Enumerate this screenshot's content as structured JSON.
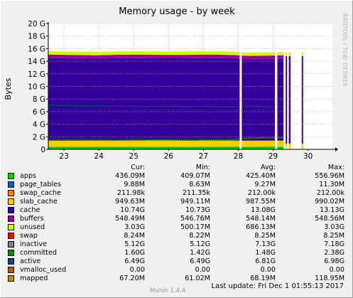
{
  "chart_data": {
    "type": "area",
    "title": "Memory usage - by week",
    "ylabel": "Bytes",
    "xlabel": "",
    "watermark": "RRDTOOL / TOBI OETIKER",
    "ylim": [
      0,
      20
    ],
    "y_unit": "G",
    "y_ticks": [
      "0",
      "2 G",
      "4 G",
      "6 G",
      "8 G",
      "10 G",
      "12 G",
      "14 G",
      "16 G",
      "18 G",
      "20 G"
    ],
    "x_ticks": [
      "23",
      "24",
      "25",
      "26",
      "27",
      "28",
      "29",
      "30"
    ],
    "x_range": [
      22.55,
      30.7
    ],
    "grid": true,
    "stack_order": [
      "apps",
      "page_tables",
      "swap_cache",
      "slab_cache",
      "cache",
      "buffers",
      "unused"
    ],
    "line_series": [
      "swap",
      "inactive",
      "committed",
      "active",
      "vmalloc_used",
      "mapped"
    ],
    "profile": {
      "x": [
        22.55,
        23.9,
        24.4,
        25.0,
        25.8,
        26.5,
        27.2,
        27.8,
        28.3,
        28.8,
        29.3
      ],
      "apps": [
        0.4,
        0.41,
        0.42,
        0.42,
        0.43,
        0.42,
        0.43,
        0.44,
        0.43,
        0.44,
        0.44
      ],
      "slab_cache": [
        1.0,
        0.99,
        0.99,
        0.98,
        0.98,
        0.97,
        0.97,
        0.96,
        0.96,
        0.95,
        0.95
      ],
      "cache": [
        13.1,
        13.0,
        13.05,
        13.1,
        13.05,
        13.08,
        13.1,
        13.05,
        12.9,
        12.95,
        13.0
      ],
      "buffers": [
        0.55,
        0.55,
        0.55,
        0.55,
        0.55,
        0.55,
        0.55,
        0.55,
        0.55,
        0.55,
        0.55
      ],
      "unused": [
        0.55,
        0.56,
        0.55,
        0.54,
        0.55,
        0.55,
        0.56,
        0.55,
        0.55,
        0.54,
        0.52
      ],
      "active": [
        6.98,
        6.92,
        6.87,
        6.83,
        6.8,
        6.81,
        6.8,
        6.78,
        6.8,
        6.82,
        6.83
      ],
      "committed": [
        1.45,
        1.47,
        1.45,
        1.48,
        1.5,
        1.47,
        1.5,
        1.52,
        1.8,
        1.85,
        1.82
      ]
    },
    "gaps": [
      [
        28.04,
        28.1
      ],
      [
        29.05,
        29.12
      ],
      [
        29.3,
        29.55
      ],
      [
        29.62,
        29.75
      ],
      [
        29.9,
        30.12
      ]
    ],
    "spikes": [
      [
        29.36,
        29.4
      ],
      [
        29.45,
        29.5
      ],
      [
        29.82,
        29.86
      ]
    ],
    "column_headers": [
      "Cur:",
      "Min:",
      "Avg:",
      "Max:"
    ],
    "series": [
      {
        "name": "apps",
        "color": "#00cc00",
        "cur": "436.09M",
        "min": "409.07M",
        "avg": "425.40M",
        "max": "556.96M"
      },
      {
        "name": "page_tables",
        "color": "#0066b3",
        "cur": "9.88M",
        "min": "8.63M",
        "avg": "9.27M",
        "max": "11.30M"
      },
      {
        "name": "swap_cache",
        "color": "#ff8000",
        "cur": "211.98k",
        "min": "211.35k",
        "avg": "212.00k",
        "max": "212.00k"
      },
      {
        "name": "slab_cache",
        "color": "#ffcc00",
        "cur": "949.63M",
        "min": "949.11M",
        "avg": "987.55M",
        "max": "990.02M"
      },
      {
        "name": "cache",
        "color": "#330099",
        "cur": "10.74G",
        "min": "10.73G",
        "avg": "13.08G",
        "max": "13.13G"
      },
      {
        "name": "buffers",
        "color": "#990099",
        "cur": "548.49M",
        "min": "546.76M",
        "avg": "548.14M",
        "max": "548.56M"
      },
      {
        "name": "unused",
        "color": "#ccff00",
        "cur": "3.03G",
        "min": "500.17M",
        "avg": "686.13M",
        "max": "3.03G"
      },
      {
        "name": "swap",
        "color": "#ff0000",
        "cur": "8.24M",
        "min": "8.22M",
        "avg": "8.25M",
        "max": "8.25M"
      },
      {
        "name": "inactive",
        "color": "#808080",
        "cur": "5.12G",
        "min": "5.12G",
        "avg": "7.13G",
        "max": "7.18G"
      },
      {
        "name": "committed",
        "color": "#008f00",
        "cur": "1.60G",
        "min": "1.42G",
        "avg": "1.48G",
        "max": "2.38G"
      },
      {
        "name": "active",
        "color": "#00487d",
        "cur": "6.49G",
        "min": "6.49G",
        "avg": "6.81G",
        "max": "6.98G"
      },
      {
        "name": "vmalloc_used",
        "color": "#b35a00",
        "cur": "0.00",
        "min": "0.00",
        "avg": "0.00",
        "max": "0.00"
      },
      {
        "name": "mapped",
        "color": "#b38f00",
        "cur": "67.20M",
        "min": "61.02M",
        "avg": "68.19M",
        "max": "118.95M"
      }
    ]
  },
  "footer": {
    "version": "Munin 1.4.4",
    "last_update": "Last update:  Fri Dec  1 01:55:13 2017"
  }
}
